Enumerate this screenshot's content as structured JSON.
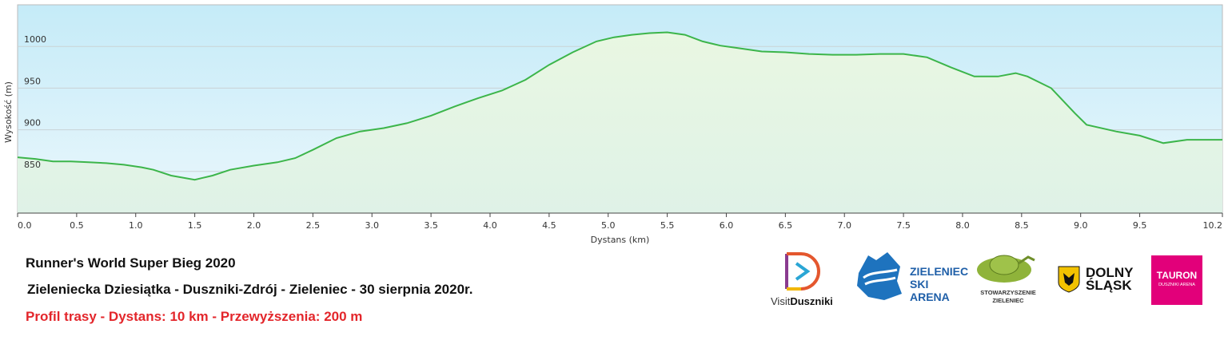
{
  "chart_data": {
    "type": "area",
    "title": "",
    "xlabel": "Dystans  (km)",
    "ylabel": "Wysokość (m)",
    "xlim": [
      0.0,
      10.2
    ],
    "ylim": [
      800,
      1050
    ],
    "grid": true,
    "legend": "none",
    "line_color": "#3cb54a",
    "x_ticks": [
      "0.0",
      "0.5",
      "1.0",
      "1.5",
      "2.0",
      "2.5",
      "3.0",
      "3.5",
      "4.0",
      "4.5",
      "5.0",
      "5.5",
      "6.0",
      "6.5",
      "7.0",
      "7.5",
      "8.0",
      "8.5",
      "9.0",
      "9.5",
      "10.2"
    ],
    "y_ticks": [
      "850",
      "900",
      "950",
      "1000"
    ],
    "series": [
      {
        "x": [
          0.0,
          0.15,
          0.3,
          0.45,
          0.6,
          0.75,
          0.9,
          1.05,
          1.15,
          1.3,
          1.5,
          1.65,
          1.8,
          2.0,
          2.2,
          2.35,
          2.5,
          2.7,
          2.9,
          3.1,
          3.3,
          3.5,
          3.7,
          3.9,
          4.1,
          4.3,
          4.5,
          4.7,
          4.9,
          5.05,
          5.2,
          5.35,
          5.5,
          5.65,
          5.8,
          5.95,
          6.1,
          6.3,
          6.5,
          6.7,
          6.9,
          7.1,
          7.3,
          7.5,
          7.7,
          7.9,
          8.1,
          8.3,
          8.45,
          8.55,
          8.75,
          8.95,
          9.05,
          9.3,
          9.5,
          9.7,
          9.9,
          10.2
        ],
        "y": [
          867,
          865,
          862,
          862,
          861,
          860,
          858,
          855,
          852,
          845,
          840,
          845,
          852,
          857,
          861,
          866,
          876,
          890,
          898,
          902,
          908,
          917,
          928,
          938,
          947,
          960,
          978,
          993,
          1006,
          1011,
          1014,
          1016,
          1017,
          1014,
          1006,
          1001,
          998,
          994,
          993,
          991,
          990,
          990,
          991,
          991,
          987,
          975,
          964,
          964,
          968,
          964,
          950,
          920,
          906,
          898,
          893,
          884,
          888,
          888
        ]
      }
    ]
  },
  "info": {
    "title": "Runner's World Super Bieg 2020",
    "subtitle": "Zieleniecka Dziesiątka - Duszniki-Zdrój - Zieleniec - 30 sierpnia 2020r.",
    "profile": "Profil trasy - Dystans: 10 km - Przewyższenia: 200 m"
  },
  "logos": {
    "visit_prefix": "Visit",
    "visit_bold": "Duszniki",
    "zieleniec_line1": "ZIELENIEC",
    "zieleniec_line2": "SKI ARENA",
    "stow_line1": "STOWARZYSZENIE",
    "stow_line2": "ZIELENIEC",
    "dolny_line1": "DOLNY",
    "dolny_line2": "ŚLĄSK",
    "tauron_line1": "TAURON",
    "tauron_line2": "DUSZNIKI ARENA"
  }
}
